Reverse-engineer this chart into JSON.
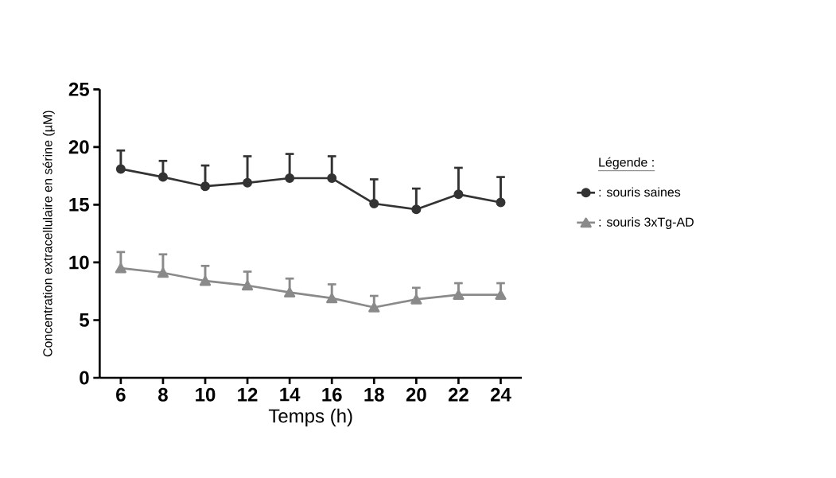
{
  "chart_data": {
    "type": "line",
    "xlabel": "Temps (h)",
    "ylabel": "Concentration extracellulaire en sérine (µM)",
    "legend_title": "Légende :",
    "legend": "right",
    "x": [
      6,
      8,
      10,
      12,
      14,
      16,
      18,
      20,
      22,
      24
    ],
    "series": [
      {
        "name": ": souris saines",
        "color": "#333333",
        "marker": "circle",
        "values": [
          18.1,
          17.4,
          16.6,
          16.9,
          17.3,
          17.3,
          15.1,
          14.6,
          15.9,
          15.2
        ],
        "errors": [
          [
            18.1,
            19.7
          ],
          [
            17.4,
            18.8
          ],
          [
            16.6,
            18.4
          ],
          [
            16.9,
            19.2
          ],
          [
            17.3,
            19.4
          ],
          [
            17.3,
            19.2
          ],
          [
            15.1,
            17.2
          ],
          [
            14.6,
            16.4
          ],
          [
            15.9,
            18.2
          ],
          [
            15.2,
            17.4
          ]
        ]
      },
      {
        "name": ": souris 3xTg-AD",
        "color": "#8a8a8a",
        "marker": "triangle",
        "values": [
          9.5,
          9.1,
          8.4,
          8.0,
          7.4,
          6.9,
          6.1,
          6.8,
          7.2,
          7.2
        ],
        "errors": [
          [
            9.5,
            10.9
          ],
          [
            9.1,
            10.7
          ],
          [
            8.4,
            9.7
          ],
          [
            8.0,
            9.2
          ],
          [
            7.4,
            8.6
          ],
          [
            6.9,
            8.1
          ],
          [
            6.1,
            7.1
          ],
          [
            6.8,
            7.8
          ],
          [
            7.2,
            8.2
          ],
          [
            7.2,
            8.2
          ]
        ]
      }
    ],
    "xlim": [
      5,
      25
    ],
    "ylim": [
      0,
      25
    ],
    "xticks": [
      6,
      8,
      10,
      12,
      14,
      16,
      18,
      20,
      22,
      24
    ],
    "yticks": [
      0,
      5,
      10,
      15,
      20,
      25
    ],
    "grid": false
  }
}
